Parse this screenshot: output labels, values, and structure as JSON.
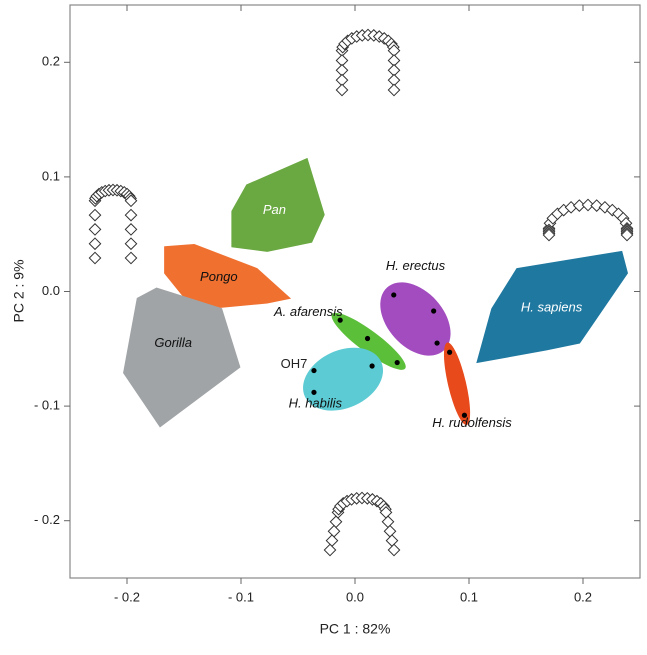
{
  "chart_data": {
    "type": "scatter",
    "xlabel": "PC 1 : 82%",
    "ylabel": "PC 2 : 9%",
    "xlim": [
      -0.25,
      0.25
    ],
    "ylim": [
      -0.25,
      0.25
    ],
    "xticks": [
      {
        "value": -0.2,
        "label": "- 0.2"
      },
      {
        "value": -0.1,
        "label": "- 0.1"
      },
      {
        "value": 0,
        "label": "0.0"
      },
      0.1,
      0.2
    ],
    "yticks": [
      {
        "value": -0.2,
        "label": "- 0.2"
      },
      {
        "value": -0.1,
        "label": "- 0.1"
      },
      {
        "value": 0,
        "label": "0.0"
      },
      0.1,
      0.2
    ],
    "series": [
      {
        "name": "Pan",
        "shape": "hull",
        "color": "#6aa842",
        "label_color": "#ffffff",
        "x": [
          -0.108,
          -0.095,
          -0.042,
          -0.027,
          -0.038,
          -0.077,
          -0.108
        ],
        "y": [
          0.07,
          0.093,
          0.116,
          0.067,
          0.043,
          0.035,
          0.039
        ]
      },
      {
        "name": "Pongo",
        "shape": "hull",
        "color": "#f07030",
        "label_color": "#111111",
        "x": [
          -0.167,
          -0.141,
          -0.086,
          -0.057,
          -0.077,
          -0.141,
          -0.167
        ],
        "y": [
          0.039,
          0.041,
          0.02,
          -0.006,
          -0.01,
          -0.016,
          0.016
        ]
      },
      {
        "name": "Gorilla",
        "shape": "hull",
        "color": "#a0a4a6",
        "label_color": "#111111",
        "x": [
          -0.174,
          -0.117,
          -0.101,
          -0.171,
          -0.203,
          -0.191
        ],
        "y": [
          0.003,
          -0.015,
          -0.066,
          -0.118,
          -0.071,
          -0.006
        ]
      },
      {
        "name": "H. sapiens",
        "shape": "hull",
        "color": "#1f78a0",
        "label_color": "#ffffff",
        "x": [
          0.142,
          0.234,
          0.239,
          0.197,
          0.168,
          0.107,
          0.12
        ],
        "y": [
          0.02,
          0.035,
          0.016,
          -0.045,
          -0.051,
          -0.062,
          -0.015
        ]
      },
      {
        "name": "A. afarensis",
        "shape": "ellipse",
        "color": "#5cbf3a",
        "label_color": "#111111",
        "x": [
          -0.013,
          0.011,
          0.037
        ],
        "y": [
          -0.025,
          -0.041,
          -0.062
        ]
      },
      {
        "name": "H. erectus",
        "shape": "ellipse",
        "color": "#a24cc0",
        "label_color": "#111111",
        "x": [
          0.034,
          0.069,
          0.072
        ],
        "y": [
          -0.003,
          -0.017,
          -0.045
        ]
      },
      {
        "name": "H. habilis",
        "shape": "ellipse",
        "color": "#5ccbd4",
        "label_color": "#111111",
        "x": [
          -0.036,
          -0.036,
          0.015
        ],
        "y": [
          -0.069,
          -0.088,
          -0.065
        ]
      },
      {
        "name": "H. rudolfensis",
        "shape": "ellipse",
        "color": "#e84a1c",
        "label_color": "#111111",
        "x": [
          0.083,
          0.096
        ],
        "y": [
          -0.053,
          -0.108
        ]
      }
    ],
    "annotations": [
      "OH7"
    ]
  }
}
